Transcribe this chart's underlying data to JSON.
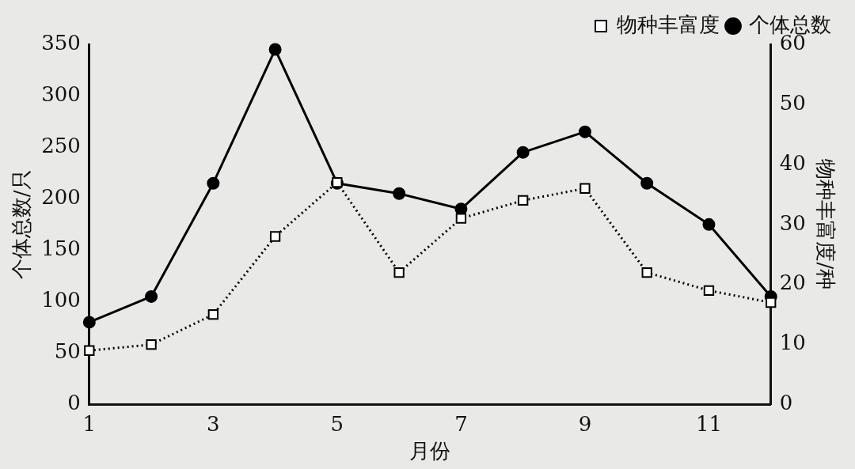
{
  "chart_data": {
    "type": "line",
    "xlabel": "月份",
    "ylabel": "个体总数/只",
    "y2label": "物种丰富度/种",
    "x": [
      1,
      2,
      3,
      4,
      5,
      6,
      7,
      8,
      9,
      10,
      11,
      12
    ],
    "series": [
      {
        "name": "个体总数",
        "color": "#000000",
        "marker": "circle",
        "line_style": "solid",
        "values": [
          80,
          105,
          215,
          345,
          215,
          205,
          190,
          245,
          265,
          215,
          175,
          105
        ]
      },
      {
        "name": "物种丰富度",
        "color": "#000000",
        "marker": "square",
        "line_style": "dotted",
        "axis": "y2",
        "values": [
          9,
          10,
          15,
          28,
          37,
          22,
          31,
          34,
          36,
          22,
          19,
          17
        ]
      }
    ],
    "xlim": [
      1,
      12
    ],
    "xticks": [
      1,
      3,
      5,
      7,
      9,
      11
    ],
    "ylim": [
      0,
      350
    ],
    "yticks": [
      0,
      50,
      100,
      150,
      200,
      250,
      300,
      350
    ],
    "y2lim": [
      0,
      60
    ],
    "y2ticks": [
      0,
      10,
      20,
      30,
      40,
      50,
      60
    ],
    "grid": false,
    "legend": "top right"
  }
}
